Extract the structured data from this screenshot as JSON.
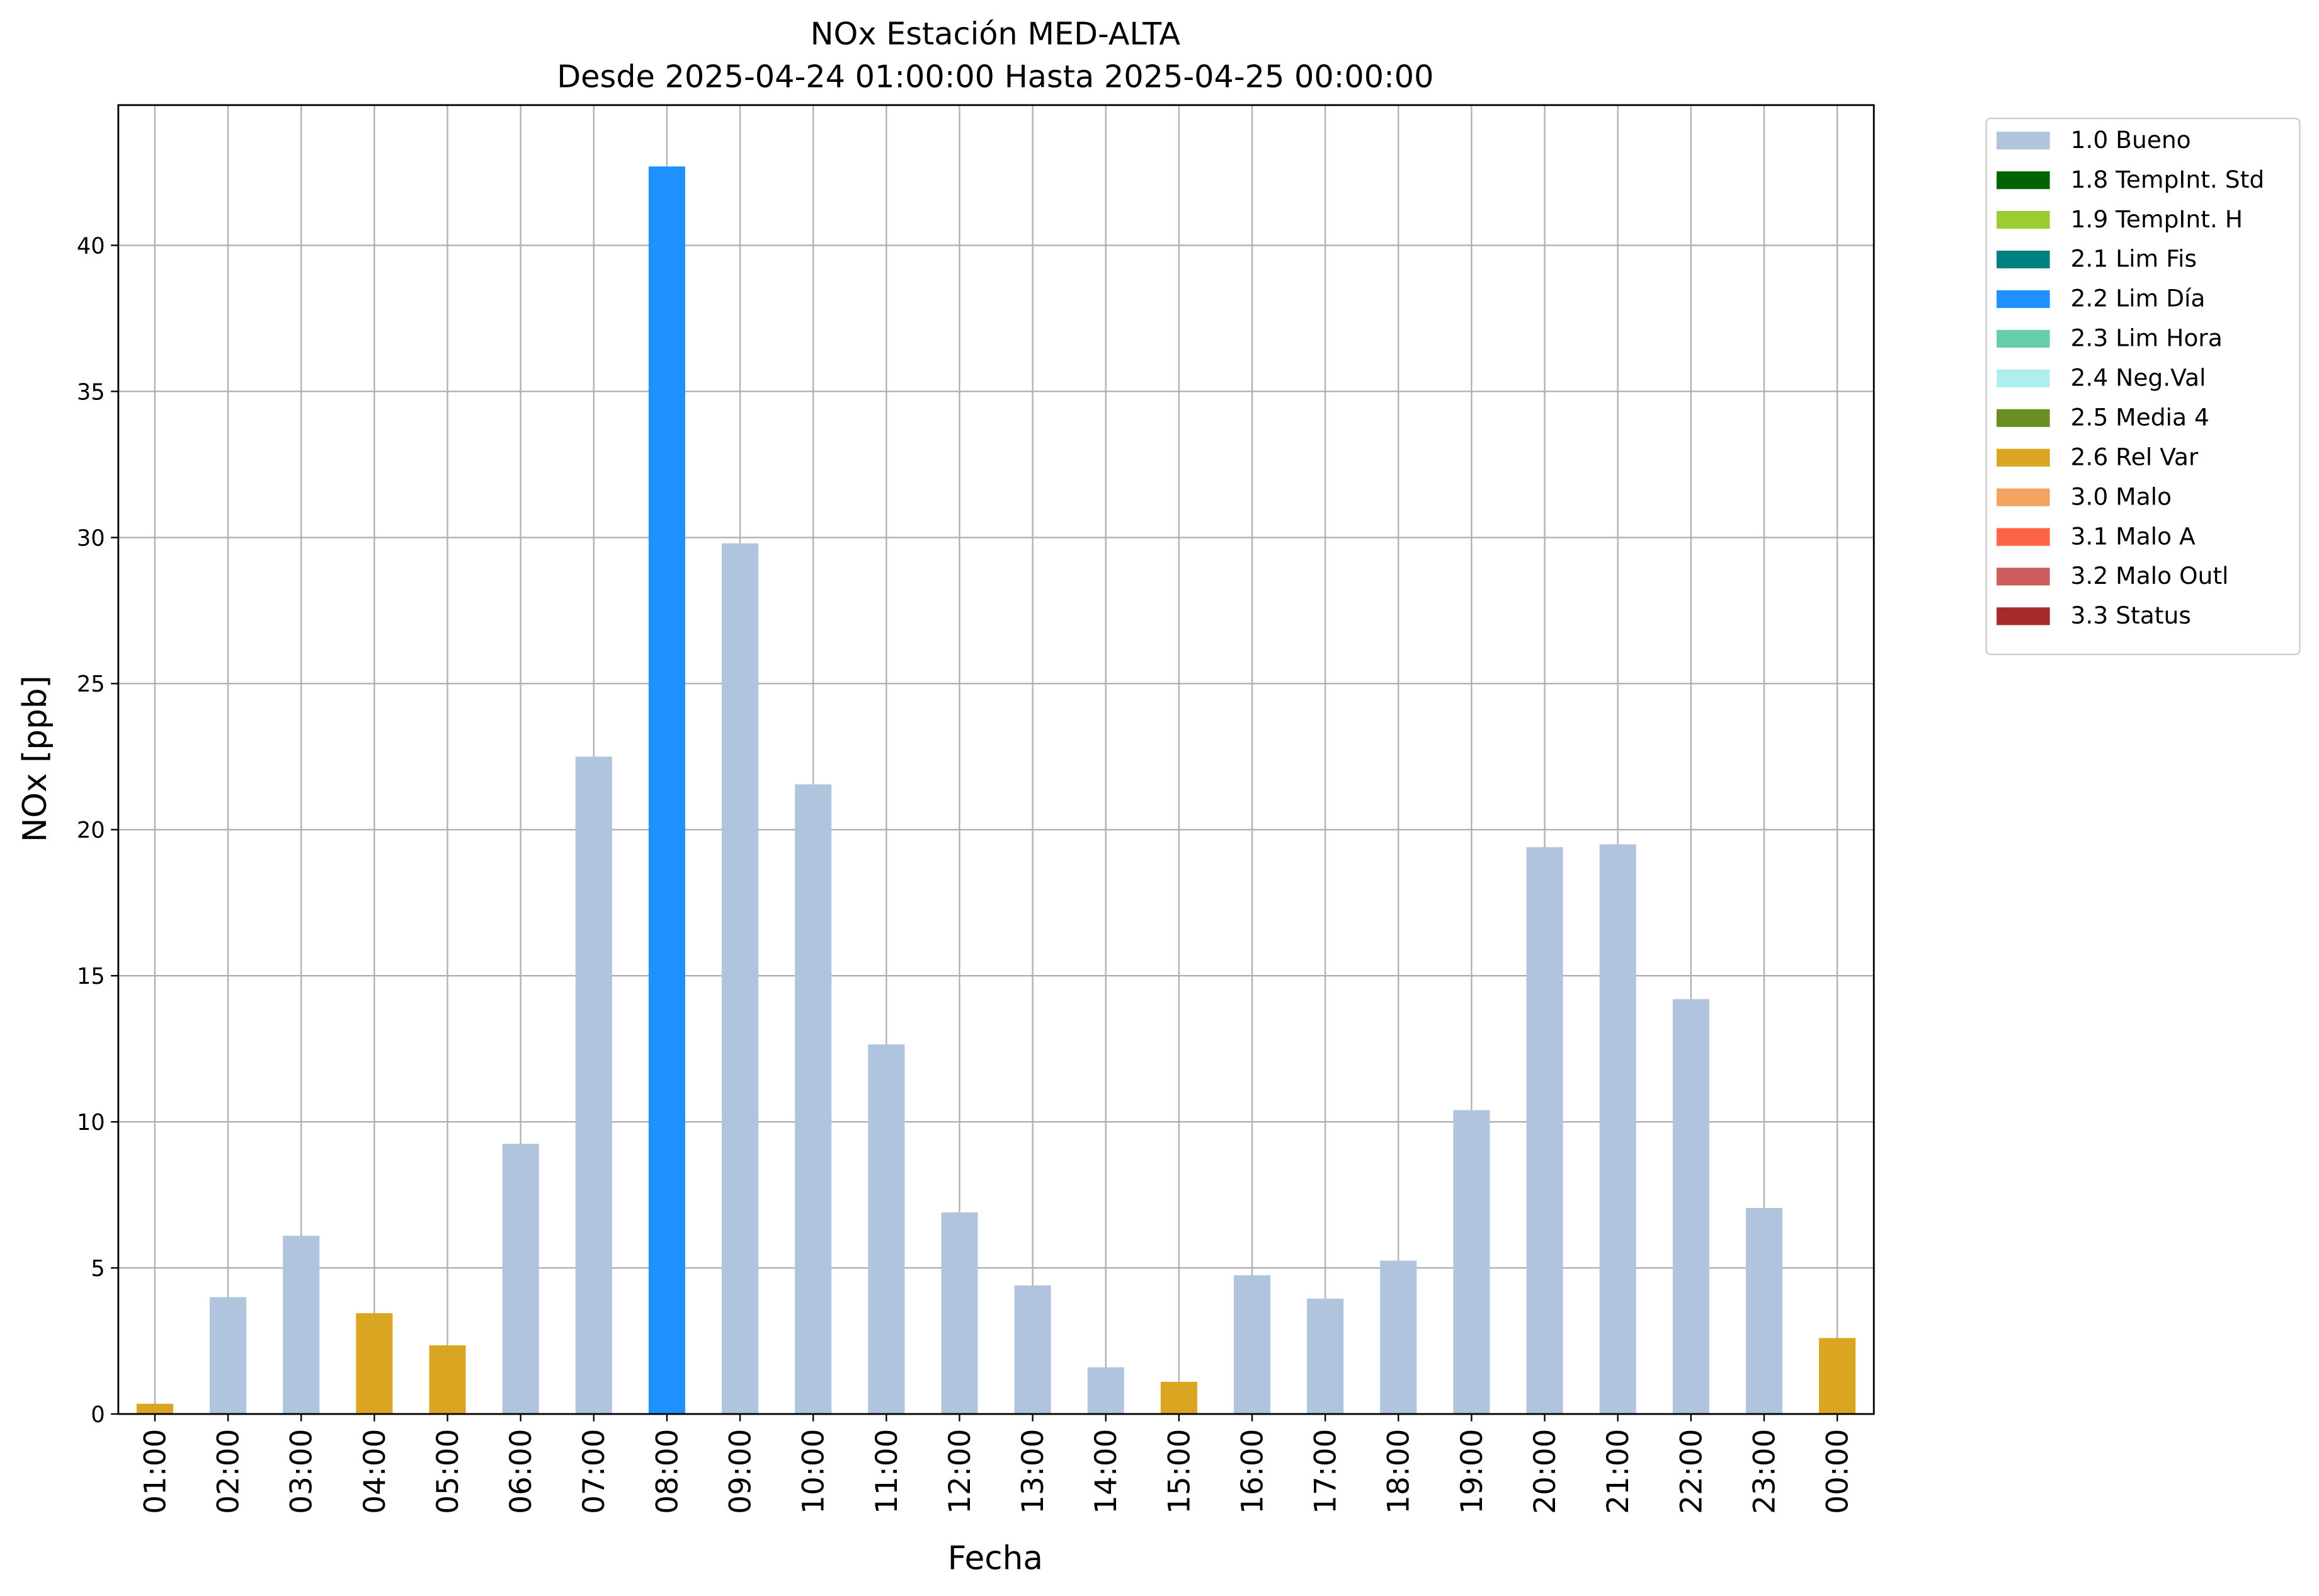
{
  "chart_data": {
    "type": "bar",
    "stacked": true,
    "title": "NOx Estación MED-ALTA",
    "subtitle": "Desde 2025-04-24 01:00:00 Hasta 2025-04-25 00:00:00",
    "x_label": "Fecha",
    "y_label": "NOx [ppb]",
    "categories": [
      "01:00",
      "02:00",
      "03:00",
      "04:00",
      "05:00",
      "06:00",
      "07:00",
      "08:00",
      "09:00",
      "10:00",
      "11:00",
      "12:00",
      "13:00",
      "14:00",
      "15:00",
      "16:00",
      "17:00",
      "18:00",
      "19:00",
      "20:00",
      "21:00",
      "22:00",
      "23:00",
      "00:00"
    ],
    "series": [
      {
        "name": "1.0 Bueno",
        "color": "#b0c4de",
        "values": [
          null,
          4.0,
          6.1,
          null,
          null,
          9.25,
          22.5,
          null,
          29.8,
          21.55,
          12.65,
          6.9,
          4.4,
          1.6,
          null,
          4.75,
          3.95,
          5.25,
          10.4,
          19.4,
          19.5,
          14.2,
          7.05,
          null
        ]
      },
      {
        "name": "1.8 TempInt. Std",
        "color": "#006400",
        "values": [
          null,
          null,
          null,
          null,
          null,
          null,
          null,
          null,
          null,
          null,
          null,
          null,
          null,
          null,
          null,
          null,
          null,
          null,
          null,
          null,
          null,
          null,
          null,
          null
        ]
      },
      {
        "name": "1.9 TempInt. H",
        "color": "#9acd32",
        "values": [
          null,
          null,
          null,
          null,
          null,
          null,
          null,
          null,
          null,
          null,
          null,
          null,
          null,
          null,
          null,
          null,
          null,
          null,
          null,
          null,
          null,
          null,
          null,
          null
        ]
      },
      {
        "name": "2.1 Lim Fis",
        "color": "#008080",
        "values": [
          null,
          null,
          null,
          null,
          null,
          null,
          null,
          null,
          null,
          null,
          null,
          null,
          null,
          null,
          null,
          null,
          null,
          null,
          null,
          null,
          null,
          null,
          null,
          null
        ]
      },
      {
        "name": "2.2 Lim Día",
        "color": "#1e90ff",
        "values": [
          null,
          null,
          null,
          null,
          null,
          null,
          null,
          42.7,
          null,
          null,
          null,
          null,
          null,
          null,
          null,
          null,
          null,
          null,
          null,
          null,
          null,
          null,
          null,
          null
        ]
      },
      {
        "name": "2.3 Lim Hora",
        "color": "#66cdaa",
        "values": [
          null,
          null,
          null,
          null,
          null,
          null,
          null,
          null,
          null,
          null,
          null,
          null,
          null,
          null,
          null,
          null,
          null,
          null,
          null,
          null,
          null,
          null,
          null,
          null
        ]
      },
      {
        "name": "2.4 Neg.Val",
        "color": "#afeeee",
        "values": [
          null,
          null,
          null,
          null,
          null,
          null,
          null,
          null,
          null,
          null,
          null,
          null,
          null,
          null,
          null,
          null,
          null,
          null,
          null,
          null,
          null,
          null,
          null,
          null
        ]
      },
      {
        "name": "2.5 Media 4",
        "color": "#6b8e23",
        "values": [
          null,
          null,
          null,
          null,
          null,
          null,
          null,
          null,
          null,
          null,
          null,
          null,
          null,
          null,
          null,
          null,
          null,
          null,
          null,
          null,
          null,
          null,
          null,
          null
        ]
      },
      {
        "name": "2.6 Rel Var",
        "color": "#daa520",
        "values": [
          0.35,
          null,
          null,
          3.45,
          2.35,
          null,
          null,
          null,
          null,
          null,
          null,
          null,
          null,
          null,
          1.1,
          null,
          null,
          null,
          null,
          null,
          null,
          null,
          null,
          2.6
        ]
      },
      {
        "name": "3.0 Malo",
        "color": "#f4a460",
        "values": [
          null,
          null,
          null,
          null,
          null,
          null,
          null,
          null,
          null,
          null,
          null,
          null,
          null,
          null,
          null,
          null,
          null,
          null,
          null,
          null,
          null,
          null,
          null,
          null
        ]
      },
      {
        "name": "3.1 Malo A",
        "color": "#ff6347",
        "values": [
          null,
          null,
          null,
          null,
          null,
          null,
          null,
          null,
          null,
          null,
          null,
          null,
          null,
          null,
          null,
          null,
          null,
          null,
          null,
          null,
          null,
          null,
          null,
          null
        ]
      },
      {
        "name": "3.2 Malo Outl",
        "color": "#cd5c5c",
        "values": [
          null,
          null,
          null,
          null,
          null,
          null,
          null,
          null,
          null,
          null,
          null,
          null,
          null,
          null,
          null,
          null,
          null,
          null,
          null,
          null,
          null,
          null,
          null,
          null
        ]
      },
      {
        "name": "3.3 Status",
        "color": "#a52a2a",
        "values": [
          null,
          null,
          null,
          null,
          null,
          null,
          null,
          null,
          null,
          null,
          null,
          null,
          null,
          null,
          null,
          null,
          null,
          null,
          null,
          null,
          null,
          null,
          null,
          null
        ]
      }
    ],
    "ylim": [
      0,
      44.8
    ],
    "yticks": [
      0,
      5,
      10,
      15,
      20,
      25,
      30,
      35,
      40
    ],
    "grid": true,
    "legend": "outside-right-top"
  }
}
